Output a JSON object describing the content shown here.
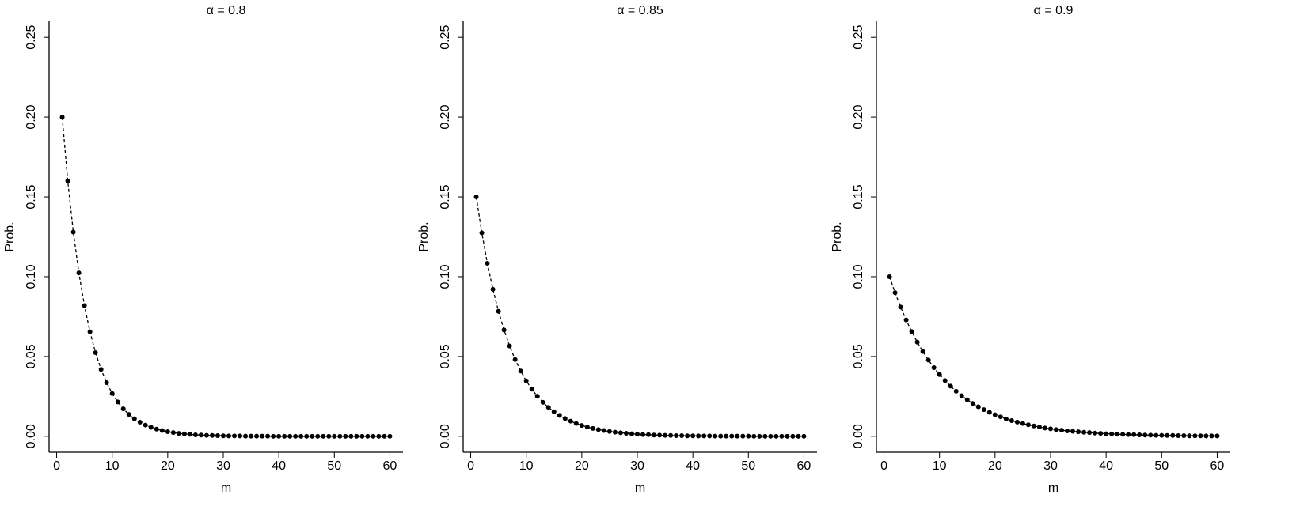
{
  "chart_data": [
    {
      "type": "line",
      "title": "α = 0.8",
      "x_label": "m",
      "y_label": "Prob.",
      "color": "#000000",
      "line_style": "dashed",
      "markers": true,
      "x": [
        1,
        2,
        3,
        4,
        5,
        6,
        7,
        8,
        9,
        10,
        11,
        12,
        13,
        14,
        15,
        16,
        17,
        18,
        19,
        20,
        21,
        22,
        23,
        24,
        25,
        26,
        27,
        28,
        29,
        30,
        31,
        32,
        33,
        34,
        35,
        36,
        37,
        38,
        39,
        40,
        41,
        42,
        43,
        44,
        45,
        46,
        47,
        48,
        49,
        50,
        51,
        52,
        53,
        54,
        55,
        56,
        57,
        58,
        59,
        60
      ],
      "values": [
        0.2,
        0.16,
        0.128,
        0.1024,
        0.0819,
        0.0655,
        0.0524,
        0.0419,
        0.0336,
        0.0268,
        0.0215,
        0.0172,
        0.0137,
        0.011,
        0.0088,
        0.007,
        0.0056,
        0.0045,
        0.0036,
        0.0029,
        0.0023,
        0.0018,
        0.0015,
        0.0012,
        0.0009,
        0.0008,
        0.0006,
        0.0005,
        0.0004,
        0.0003,
        0.0002,
        0.0002,
        0.0002,
        0.0001,
        0.0001,
        0.0001,
        0.0001,
        0.0001,
        0,
        0,
        0,
        0,
        0,
        0,
        0,
        0,
        0,
        0,
        0,
        0,
        0,
        0,
        0,
        0,
        0,
        0,
        0,
        0,
        0,
        0
      ],
      "xlim": [
        -1.36,
        62.36
      ],
      "xticks": [
        0,
        10,
        20,
        30,
        40,
        50,
        60
      ],
      "ylim": [
        -0.01,
        0.26
      ],
      "yticks": [
        {
          "value": 0,
          "label": "0.00"
        },
        0.05,
        {
          "value": 0.1,
          "label": "0.10"
        },
        0.15,
        {
          "value": 0.2,
          "label": "0.20"
        },
        0.25
      ]
    },
    {
      "type": "line",
      "title": "α = 0.85",
      "x_label": "m",
      "y_label": "Prob.",
      "color": "#000000",
      "line_style": "dashed",
      "markers": true,
      "x": [
        1,
        2,
        3,
        4,
        5,
        6,
        7,
        8,
        9,
        10,
        11,
        12,
        13,
        14,
        15,
        16,
        17,
        18,
        19,
        20,
        21,
        22,
        23,
        24,
        25,
        26,
        27,
        28,
        29,
        30,
        31,
        32,
        33,
        34,
        35,
        36,
        37,
        38,
        39,
        40,
        41,
        42,
        43,
        44,
        45,
        46,
        47,
        48,
        49,
        50,
        51,
        52,
        53,
        54,
        55,
        56,
        57,
        58,
        59,
        60
      ],
      "values": [
        0.15,
        0.1275,
        0.1084,
        0.0921,
        0.0783,
        0.0666,
        0.0566,
        0.0481,
        0.0409,
        0.0347,
        0.0295,
        0.0251,
        0.0213,
        0.0181,
        0.0154,
        0.0131,
        0.0111,
        0.0095,
        0.008,
        0.0068,
        0.0058,
        0.0049,
        0.0042,
        0.0036,
        0.003,
        0.0026,
        0.0022,
        0.0019,
        0.0016,
        0.0013,
        0.0011,
        0.001,
        0.0008,
        0.0007,
        0.0006,
        0.0005,
        0.0004,
        0.0004,
        0.0003,
        0.0003,
        0.0002,
        0.0002,
        0.0002,
        0.0001,
        0.0001,
        0.0001,
        0.0001,
        0.0001,
        0.0001,
        0.0001,
        0,
        0,
        0,
        0,
        0,
        0,
        0,
        0,
        0,
        0
      ],
      "xlim": [
        -1.36,
        62.36
      ],
      "xticks": [
        0,
        10,
        20,
        30,
        40,
        50,
        60
      ],
      "ylim": [
        -0.01,
        0.26
      ],
      "yticks": [
        {
          "value": 0,
          "label": "0.00"
        },
        0.05,
        {
          "value": 0.1,
          "label": "0.10"
        },
        0.15,
        {
          "value": 0.2,
          "label": "0.20"
        },
        0.25
      ]
    },
    {
      "type": "line",
      "title": "α = 0.9",
      "x_label": "m",
      "y_label": "Prob.",
      "color": "#000000",
      "line_style": "dashed",
      "markers": true,
      "x": [
        1,
        2,
        3,
        4,
        5,
        6,
        7,
        8,
        9,
        10,
        11,
        12,
        13,
        14,
        15,
        16,
        17,
        18,
        19,
        20,
        21,
        22,
        23,
        24,
        25,
        26,
        27,
        28,
        29,
        30,
        31,
        32,
        33,
        34,
        35,
        36,
        37,
        38,
        39,
        40,
        41,
        42,
        43,
        44,
        45,
        46,
        47,
        48,
        49,
        50,
        51,
        52,
        53,
        54,
        55,
        56,
        57,
        58,
        59,
        60
      ],
      "values": [
        0.1,
        0.09,
        0.081,
        0.0729,
        0.0656,
        0.059,
        0.0531,
        0.0478,
        0.043,
        0.0387,
        0.0349,
        0.0314,
        0.0282,
        0.0254,
        0.0229,
        0.0206,
        0.0185,
        0.0167,
        0.015,
        0.0135,
        0.0122,
        0.0109,
        0.0098,
        0.0089,
        0.008,
        0.0072,
        0.0065,
        0.0058,
        0.0052,
        0.0047,
        0.0042,
        0.0038,
        0.0034,
        0.0031,
        0.0028,
        0.0025,
        0.0023,
        0.002,
        0.0018,
        0.0016,
        0.0015,
        0.0013,
        0.0012,
        0.0011,
        0.001,
        0.0009,
        0.0008,
        0.0007,
        0.0006,
        0.0006,
        0.0005,
        0.0005,
        0.0004,
        0.0004,
        0.0003,
        0.0003,
        0.0003,
        0.0002,
        0.0002,
        0.0002
      ],
      "xlim": [
        -1.36,
        62.36
      ],
      "xticks": [
        0,
        10,
        20,
        30,
        40,
        50,
        60
      ],
      "ylim": [
        -0.01,
        0.26
      ],
      "yticks": [
        {
          "value": 0,
          "label": "0.00"
        },
        0.05,
        {
          "value": 0.1,
          "label": "0.10"
        },
        0.15,
        {
          "value": 0.2,
          "label": "0.20"
        },
        0.25
      ]
    }
  ]
}
